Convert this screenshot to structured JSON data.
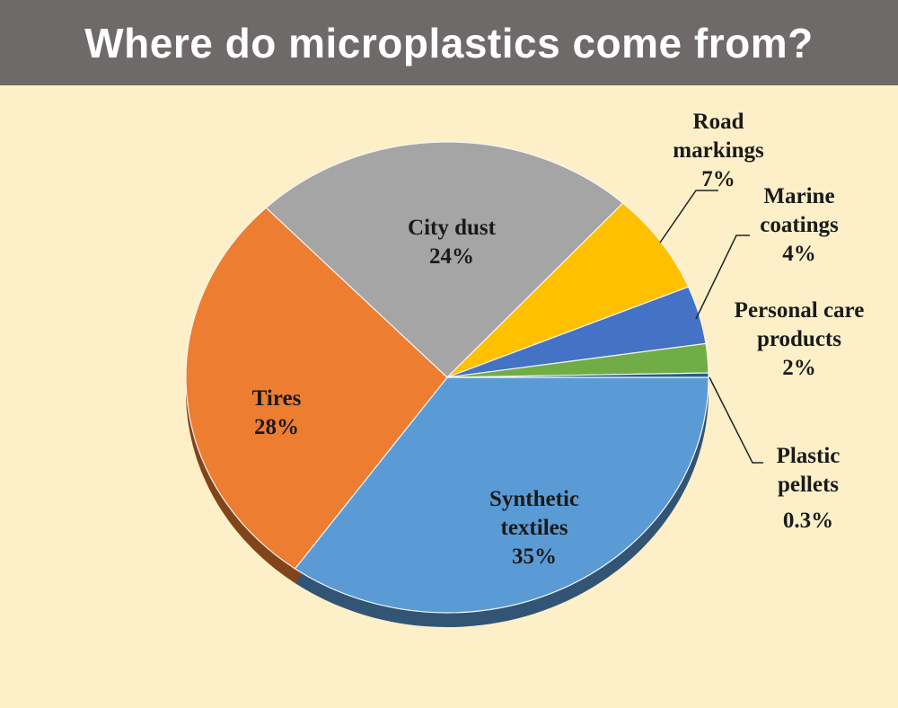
{
  "chart_data": {
    "type": "pie",
    "title": "Where do microplastics come from?",
    "categories": [
      "Synthetic textiles",
      "Tires",
      "City dust",
      "Road markings",
      "Marine coatings",
      "Personal care products",
      "Plastic pellets"
    ],
    "values": [
      35,
      28,
      24,
      7,
      4,
      2,
      0.3
    ],
    "value_labels": [
      "35%",
      "28%",
      "24%",
      "7%",
      "4%",
      "2%",
      "0.3%"
    ],
    "colors": [
      "#5b9bd5",
      "#ed7d31",
      "#a5a5a5",
      "#ffc000",
      "#4472c4",
      "#70ad47",
      "#255e91"
    ]
  }
}
